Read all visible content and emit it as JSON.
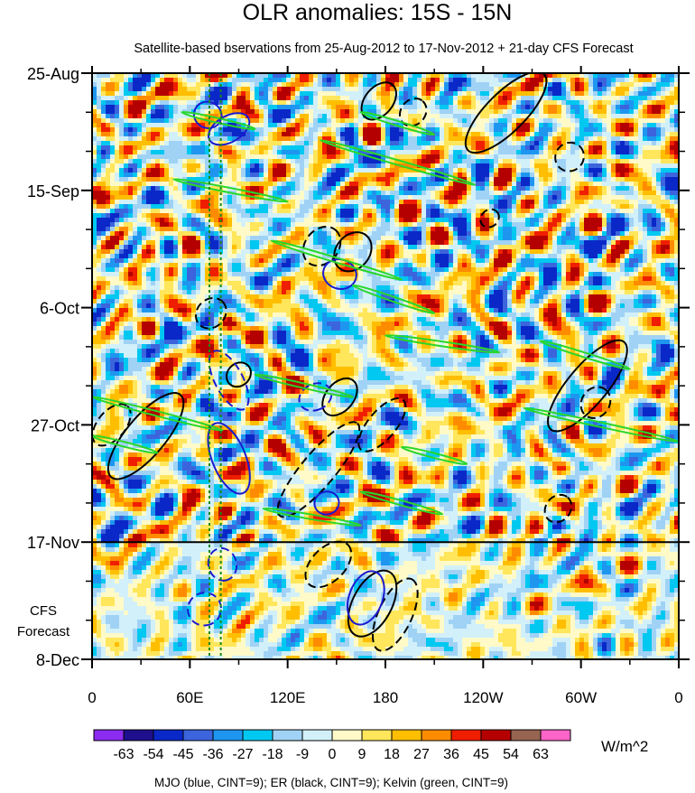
{
  "chart_data": {
    "type": "heatmap",
    "title": "OLR anomalies: 15S - 15N",
    "subtitle": "Satellite-based bservations from 25-Aug-2012 to 17-Nov-2012 + 21-day CFS Forecast",
    "x_ticks": [
      {
        "lon": 0,
        "label": "0"
      },
      {
        "lon": 60,
        "label": "60E"
      },
      {
        "lon": 120,
        "label": "120E"
      },
      {
        "lon": 180,
        "label": "180"
      },
      {
        "lon": 240,
        "label": "120W"
      },
      {
        "lon": 300,
        "label": "60W"
      },
      {
        "lon": 360,
        "label": "0"
      }
    ],
    "xlim": [
      0,
      360
    ],
    "y_ticks": [
      {
        "day": 0,
        "label": "25-Aug"
      },
      {
        "day": 21,
        "label": "15-Sep"
      },
      {
        "day": 42,
        "label": "6-Oct"
      },
      {
        "day": 63,
        "label": "27-Oct"
      },
      {
        "day": 84,
        "label": "17-Nov"
      },
      {
        "day": 105,
        "label": "8-Dec"
      }
    ],
    "ylim": [
      0,
      105
    ],
    "forecast_start_day": 84,
    "forecast_label": [
      "CFS",
      "Forecast"
    ],
    "reference_lon": [
      72,
      79
    ],
    "colorbar": {
      "labels": [
        "-63",
        "-54",
        "-45",
        "-36",
        "-27",
        "-18",
        "-9",
        "0",
        "9",
        "18",
        "27",
        "36",
        "45",
        "54",
        "63"
      ],
      "colors": [
        "#8c2cf0",
        "#1e0f8c",
        "#0a28c8",
        "#3c64dc",
        "#1e96f0",
        "#00c8f0",
        "#a0d2f5",
        "#d2f0fa",
        "#fffac8",
        "#ffe65a",
        "#ffbe00",
        "#ff8c00",
        "#f01e00",
        "#b40000",
        "#966450",
        "#ff64c8"
      ],
      "units": "W/m^2"
    },
    "legend_caption": "MJO (blue, CINT=9); ER (black, CINT=9); Kelvin (green, CINT=9)",
    "mjo_contours": [
      {
        "lon": 71,
        "day": 7.5,
        "rx": 8,
        "ry": 2.5,
        "deg": -65,
        "neg": false
      },
      {
        "lon": 84,
        "day": 10,
        "rx": 8,
        "ry": 4,
        "deg": 60,
        "neg": false
      },
      {
        "lon": 84,
        "day": 55,
        "rx": 20,
        "ry": 2.5,
        "deg": 62,
        "neg": true
      },
      {
        "lon": 84,
        "day": 69,
        "rx": 23,
        "ry": 3,
        "deg": 68,
        "neg": false
      },
      {
        "lon": 137,
        "day": 58,
        "rx": 8,
        "ry": 3,
        "deg": 65,
        "neg": true
      },
      {
        "lon": 152,
        "day": 36,
        "rx": 9,
        "ry": 3,
        "deg": -72,
        "neg": false
      },
      {
        "lon": 144,
        "day": 77,
        "rx": 7,
        "ry": 2.2,
        "deg": 75,
        "neg": false
      },
      {
        "lon": 168,
        "day": 94,
        "rx": 17,
        "ry": 3,
        "deg": -70,
        "neg": false
      },
      {
        "lon": 69,
        "day": 96,
        "rx": 10,
        "ry": 3,
        "deg": 65,
        "neg": true
      },
      {
        "lon": 80,
        "day": 88,
        "rx": 10,
        "ry": 2.5,
        "deg": 75,
        "neg": true
      }
    ],
    "er_contours": [
      {
        "lon": 33,
        "day": 65,
        "rx": 33,
        "ry": 3.5,
        "deg": -50,
        "neg": false
      },
      {
        "lon": 12,
        "day": 63,
        "rx": 15,
        "ry": 2.5,
        "deg": -50,
        "neg": true
      },
      {
        "lon": 73,
        "day": 43,
        "rx": 10,
        "ry": 2.5,
        "deg": -45,
        "neg": true
      },
      {
        "lon": 90,
        "day": 54,
        "rx": 8,
        "ry": 2,
        "deg": -45,
        "neg": false
      },
      {
        "lon": 176,
        "day": 5,
        "rx": 13,
        "ry": 2.5,
        "deg": -50,
        "neg": false
      },
      {
        "lon": 197,
        "day": 7,
        "rx": 9,
        "ry": 2.2,
        "deg": -50,
        "neg": true
      },
      {
        "lon": 254,
        "day": 7,
        "rx": 33,
        "ry": 3.5,
        "deg": -45,
        "neg": false
      },
      {
        "lon": 293,
        "day": 15,
        "rx": 9,
        "ry": 2.5,
        "deg": -45,
        "neg": true
      },
      {
        "lon": 244,
        "day": 26,
        "rx": 6,
        "ry": 1.5,
        "deg": -40,
        "neg": true
      },
      {
        "lon": 160,
        "day": 32,
        "rx": 13,
        "ry": 3,
        "deg": -50,
        "neg": false
      },
      {
        "lon": 141,
        "day": 31,
        "rx": 13,
        "ry": 3,
        "deg": -50,
        "neg": true
      },
      {
        "lon": 152,
        "day": 58,
        "rx": 13,
        "ry": 2.5,
        "deg": -50,
        "neg": false
      },
      {
        "lon": 139,
        "day": 71,
        "rx": 37,
        "ry": 3,
        "deg": -50,
        "neg": true
      },
      {
        "lon": 178,
        "day": 63,
        "rx": 20,
        "ry": 2.5,
        "deg": -50,
        "neg": true
      },
      {
        "lon": 145,
        "day": 88,
        "rx": 17,
        "ry": 3,
        "deg": -45,
        "neg": true
      },
      {
        "lon": 172,
        "day": 95,
        "rx": 22,
        "ry": 3.5,
        "deg": -62,
        "neg": false
      },
      {
        "lon": 186,
        "day": 97,
        "rx": 24,
        "ry": 3,
        "deg": -65,
        "neg": true
      },
      {
        "lon": 304,
        "day": 56,
        "rx": 35,
        "ry": 3.5,
        "deg": -50,
        "neg": false
      },
      {
        "lon": 309,
        "day": 59,
        "rx": 10,
        "ry": 2.5,
        "deg": -55,
        "neg": true
      },
      {
        "lon": 286,
        "day": 78,
        "rx": 9,
        "ry": 2.2,
        "deg": -50,
        "neg": true
      }
    ],
    "kelvin_contours": [
      {
        "x1": 55,
        "d1": 7,
        "x2": 100,
        "d2": 10
      },
      {
        "x1": 140,
        "d1": 12,
        "x2": 235,
        "d2": 20
      },
      {
        "x1": 165,
        "d1": 7,
        "x2": 210,
        "d2": 11
      },
      {
        "x1": 160,
        "d1": 38,
        "x2": 210,
        "d2": 43
      },
      {
        "x1": 180,
        "d1": 47,
        "x2": 250,
        "d2": 50
      },
      {
        "x1": 275,
        "d1": 48,
        "x2": 330,
        "d2": 53
      },
      {
        "x1": 100,
        "d1": 54,
        "x2": 160,
        "d2": 58
      },
      {
        "x1": 265,
        "d1": 60,
        "x2": 360,
        "d2": 66
      },
      {
        "x1": 0,
        "d1": 58,
        "x2": 80,
        "d2": 64
      },
      {
        "x1": 0,
        "d1": 65,
        "x2": 40,
        "d2": 68
      },
      {
        "x1": 110,
        "d1": 30,
        "x2": 190,
        "d2": 37
      },
      {
        "x1": 165,
        "d1": 75,
        "x2": 215,
        "d2": 79
      },
      {
        "x1": 190,
        "d1": 67,
        "x2": 230,
        "d2": 70
      },
      {
        "x1": 105,
        "d1": 78,
        "x2": 165,
        "d2": 81
      },
      {
        "x1": 50,
        "d1": 19,
        "x2": 120,
        "d2": 23
      }
    ]
  }
}
